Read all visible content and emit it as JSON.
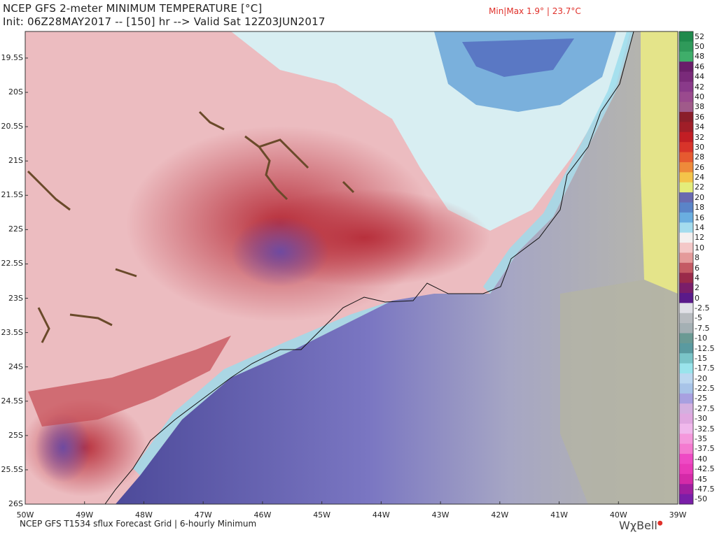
{
  "header": {
    "title": "NCEP GFS 2-meter MINIMUM TEMPERATURE [°C]",
    "init_line": "Init: 06Z28MAY2017 -- [150] hr --> Valid Sat 12Z03JUN2017",
    "minmax": "Min|Max 1.9° | 23.7°C"
  },
  "footer": {
    "source": "NCEP GFS T1534 sflux Forecast Grid | 6-hourly Minimum",
    "brand": "WχBell"
  },
  "map": {
    "lat_labels": [
      "19.5S",
      "20S",
      "20.5S",
      "21S",
      "21.5S",
      "22S",
      "22.5S",
      "23S",
      "23.5S",
      "24S",
      "24.5S",
      "25S",
      "25.5S",
      "26S"
    ],
    "lon_labels": [
      "50W",
      "49W",
      "48W",
      "47W",
      "46W",
      "45W",
      "44W",
      "43W",
      "42W",
      "41W",
      "40W",
      "39W"
    ]
  },
  "colorbar": {
    "labels": [
      "52",
      "50",
      "48",
      "46",
      "44",
      "42",
      "40",
      "38",
      "36",
      "34",
      "32",
      "30",
      "28",
      "26",
      "24",
      "22",
      "20",
      "18",
      "16",
      "14",
      "12",
      "10",
      "8",
      "6",
      "4",
      "2",
      "0",
      "-2.5",
      "-5",
      "-7.5",
      "-10",
      "-12.5",
      "-15",
      "-17.5",
      "-20",
      "-22.5",
      "-25",
      "-27.5",
      "-30",
      "-32.5",
      "-35",
      "-37.5",
      "-40",
      "-42.5",
      "-45",
      "-47.5",
      "-50"
    ],
    "colors": [
      "#1f8a4c",
      "#2f9a5a",
      "#3fae6a",
      "#6a1e6a",
      "#7a2a7a",
      "#8a3a8a",
      "#9a4a8e",
      "#a05a8a",
      "#8a1e2a",
      "#a01e28",
      "#c21e24",
      "#d8342a",
      "#e65a30",
      "#ee8a3a",
      "#f4c44a",
      "#e4ec7a",
      "#6a6ab0",
      "#5a84c8",
      "#6aaee0",
      "#a4dcee",
      "#f4f0f0",
      "#f4c8c8",
      "#e49a9a",
      "#c45a64",
      "#9a2a4a",
      "#7a1e6a",
      "#5a1a8a",
      "#e0e0e6",
      "#b8bcc0",
      "#a4b0b4",
      "#6a9a94",
      "#5a9aa0",
      "#7ac4c8",
      "#9ae4ec",
      "#bcd8f0",
      "#a8c4e8",
      "#a8a0e0",
      "#d4b0e0",
      "#e0a8e0",
      "#f0b8ec",
      "#f498dc",
      "#f47ad0",
      "#ee4ac4",
      "#e83ab8",
      "#d42aa8",
      "#a01ea0",
      "#7a1ea8"
    ]
  }
}
